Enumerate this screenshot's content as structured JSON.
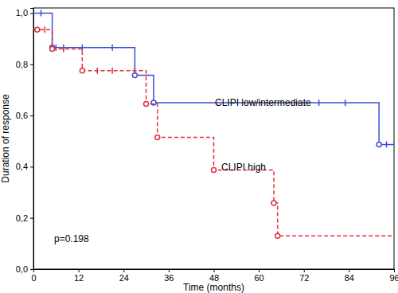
{
  "chart_data": {
    "type": "line",
    "x_label": "Time (months)",
    "y_label": "Duration of response",
    "xlim": [
      0,
      96
    ],
    "xticks": [
      0,
      12,
      24,
      36,
      48,
      60,
      72,
      84,
      96
    ],
    "ylim": [
      0,
      1.02
    ],
    "yticks": [
      {
        "value": 0,
        "label": "0,0"
      },
      {
        "value": 0.2,
        "label": "0,2"
      },
      {
        "value": 0.4,
        "label": "0,4"
      },
      {
        "value": 0.6,
        "label": "0,6"
      },
      {
        "value": 0.8,
        "label": "0,8"
      },
      {
        "value": 1.0,
        "label": "1,0"
      }
    ],
    "grid": false,
    "annotations": [
      "p=0.198"
    ],
    "series": [
      {
        "name": "CLIPI low/intermediate",
        "color": "#3b4fd4",
        "line_style": "solid",
        "marker": "circle",
        "x": [
          0,
          5,
          27,
          32,
          92,
          96
        ],
        "values": [
          1.0,
          0.865,
          0.757,
          0.65,
          0.487,
          0.487
        ],
        "events_x": [
          5,
          27,
          32,
          92
        ],
        "events_values": [
          0.865,
          0.757,
          0.65,
          0.487
        ],
        "censored_x": [
          2,
          6,
          8,
          13,
          21,
          76,
          83,
          94
        ],
        "censored_values": [
          1.0,
          0.865,
          0.865,
          0.865,
          0.865,
          0.65,
          0.65,
          0.487
        ]
      },
      {
        "name": "CLIPI high",
        "color": "#e0303a",
        "line_style": "dashed",
        "marker": "circle",
        "x": [
          0,
          5,
          13,
          30,
          33,
          48,
          64,
          65,
          96
        ],
        "values": [
          0.935,
          0.86,
          0.775,
          0.645,
          0.515,
          0.387,
          0.258,
          0.13,
          0.13
        ],
        "events_x": [
          1,
          5,
          13,
          30,
          33,
          48,
          64,
          65
        ],
        "events_values": [
          0.935,
          0.86,
          0.775,
          0.645,
          0.515,
          0.387,
          0.258,
          0.13
        ],
        "censored_x": [
          3,
          8,
          17,
          21,
          27
        ],
        "censored_values": [
          0.935,
          0.86,
          0.775,
          0.775,
          0.775
        ]
      }
    ]
  }
}
